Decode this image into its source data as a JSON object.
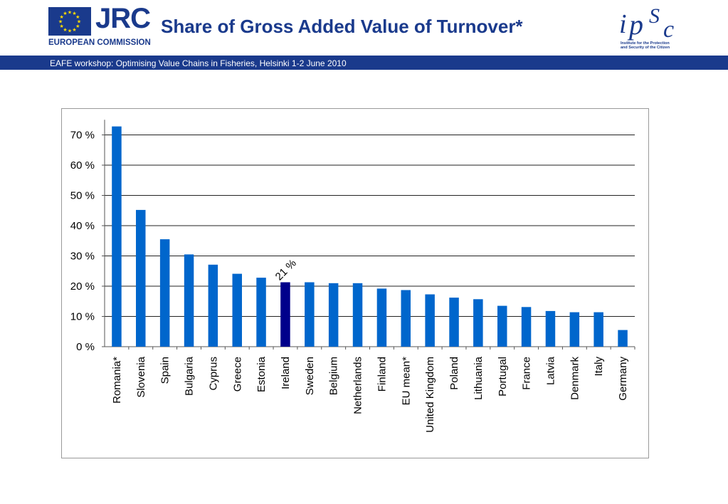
{
  "header": {
    "agency_short": "JRC",
    "agency_full": "EUROPEAN COMMISSION",
    "title": "Share of Gross Added Value of Turnover*",
    "institute_logo": "ipSc",
    "institute_caption_line1": "Institute for the Protection",
    "institute_caption_line2": "and Security of the Citizen",
    "subtitle": "EAFE workshop: Optimising  Value Chains in Fisheries, Helsinki 1-2 June 2010"
  },
  "colors": {
    "brand": "#1a3a8c",
    "bar": "#0066cc",
    "highlight_bar": "#00008b",
    "eu_star": "#ffdd00"
  },
  "chart_data": {
    "type": "bar",
    "title": "",
    "xlabel": "",
    "ylabel": "",
    "ylim": [
      0,
      75
    ],
    "yticks": [
      0,
      10,
      20,
      30,
      40,
      50,
      60,
      70
    ],
    "ytick_labels": [
      "0 %",
      "10 %",
      "20 %",
      "30 %",
      "40 %",
      "50 %",
      "60 %",
      "70 %"
    ],
    "grid": true,
    "legend": "none",
    "categories": [
      "Romania*",
      "Slovenia",
      "Spain",
      "Bulgaria",
      "Cyprus",
      "Greece",
      "Estonia",
      "Ireland",
      "Sweden",
      "Belgium",
      "Netherlands",
      "Finland",
      "EU mean*",
      "United Kingdom",
      "Poland",
      "Lithuania",
      "Portugal",
      "France",
      "Latvia",
      "Denmark",
      "Italy",
      "Germany"
    ],
    "values": [
      72.8,
      45.2,
      35.5,
      30.5,
      27.1,
      24.1,
      22.8,
      21.3,
      21.3,
      21.0,
      21.0,
      19.2,
      18.7,
      17.3,
      16.2,
      15.7,
      13.5,
      13.1,
      11.8,
      11.4,
      11.4,
      5.5
    ],
    "highlight_index": 7,
    "annotation": {
      "text": "21 %",
      "category": "Ireland"
    }
  }
}
